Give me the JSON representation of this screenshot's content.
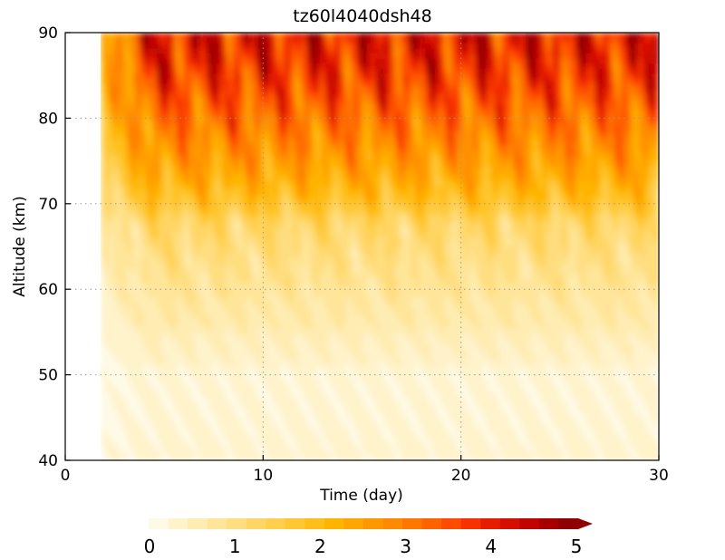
{
  "chart_data": {
    "type": "heatmap",
    "title": "tz60l4040dsh48",
    "xlabel": "Time (day)",
    "ylabel": "Altitude (km)",
    "xlim": [
      0,
      30
    ],
    "ylim": [
      40,
      90
    ],
    "x_ticks": [
      0,
      10,
      20,
      30
    ],
    "y_ticks": [
      40,
      50,
      60,
      70,
      80,
      90
    ],
    "grid": true,
    "data_start_day": 1.8,
    "colorbar": {
      "min": 0,
      "max": 5,
      "ticks": [
        0,
        1,
        2,
        3,
        4,
        5
      ],
      "extend": "max",
      "colors": [
        "#fffae6",
        "#fff3cc",
        "#ffecb3",
        "#ffe599",
        "#ffde80",
        "#ffd666",
        "#ffcf4d",
        "#ffc733",
        "#ffbf1a",
        "#ffb400",
        "#ffa600",
        "#ff9800",
        "#ff8900",
        "#ff7700",
        "#ff6200",
        "#ff4b00",
        "#f53200",
        "#e61e00",
        "#d40f00",
        "#c00500",
        "#a80000",
        "#900000"
      ]
    },
    "altitude_profile": [
      {
        "altitude": 40,
        "value": 0.35
      },
      {
        "altitude": 45,
        "value": 0.3
      },
      {
        "altitude": 50,
        "value": 0.3
      },
      {
        "altitude": 53,
        "value": 0.45
      },
      {
        "altitude": 56,
        "value": 0.65
      },
      {
        "altitude": 60,
        "value": 0.85
      },
      {
        "altitude": 64,
        "value": 1.05
      },
      {
        "altitude": 68,
        "value": 1.35
      },
      {
        "altitude": 70,
        "value": 1.9
      },
      {
        "altitude": 73,
        "value": 2.4
      },
      {
        "altitude": 76,
        "value": 2.8
      },
      {
        "altitude": 80,
        "value": 3.3
      },
      {
        "altitude": 84,
        "value": 3.8
      },
      {
        "altitude": 87,
        "value": 4.1
      },
      {
        "altitude": 90,
        "value": 4.3
      }
    ]
  }
}
